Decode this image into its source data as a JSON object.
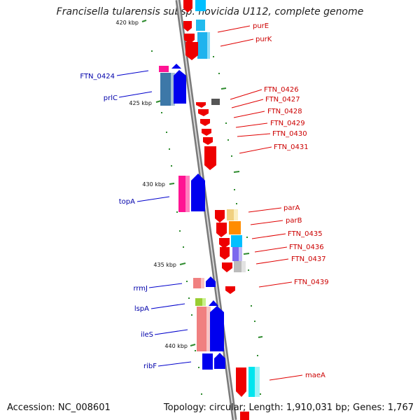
{
  "title": "Francisella tularensis subsp. novicida U112, complete genome",
  "accession": "Accession: NC_008601",
  "topology": "Topology: circular; Length: 1,910,031 bp; Genes: 1,767",
  "colors": {
    "backbone": "#8c8c8c",
    "forward_genes": "#0000ee",
    "reverse_genes": "#ee0000",
    "right_labels": "#cc0000",
    "left_labels": "#0000aa",
    "ticks": "#228b22"
  },
  "kbp_markers": [
    {
      "position_kbp": 420,
      "label": "420 kbp"
    },
    {
      "position_kbp": 425,
      "label": "425 kbp"
    },
    {
      "position_kbp": 430,
      "label": "430 kbp"
    },
    {
      "position_kbp": 435,
      "label": "435 kbp"
    },
    {
      "position_kbp": 440,
      "label": "440 kbp"
    }
  ],
  "right_gene_labels": [
    "purE",
    "purK",
    "FTN_0426",
    "FTN_0427",
    "FTN_0428",
    "FTN_0429",
    "FTN_0430",
    "FTN_0431",
    "parA",
    "parB",
    "FTN_0435",
    "FTN_0436",
    "FTN_0437",
    "FTN_0439",
    "maeA"
  ],
  "left_gene_labels": [
    "FTN_0424",
    "prlC",
    "topA",
    "rrmJ",
    "lspA",
    "ileS",
    "ribF"
  ]
}
